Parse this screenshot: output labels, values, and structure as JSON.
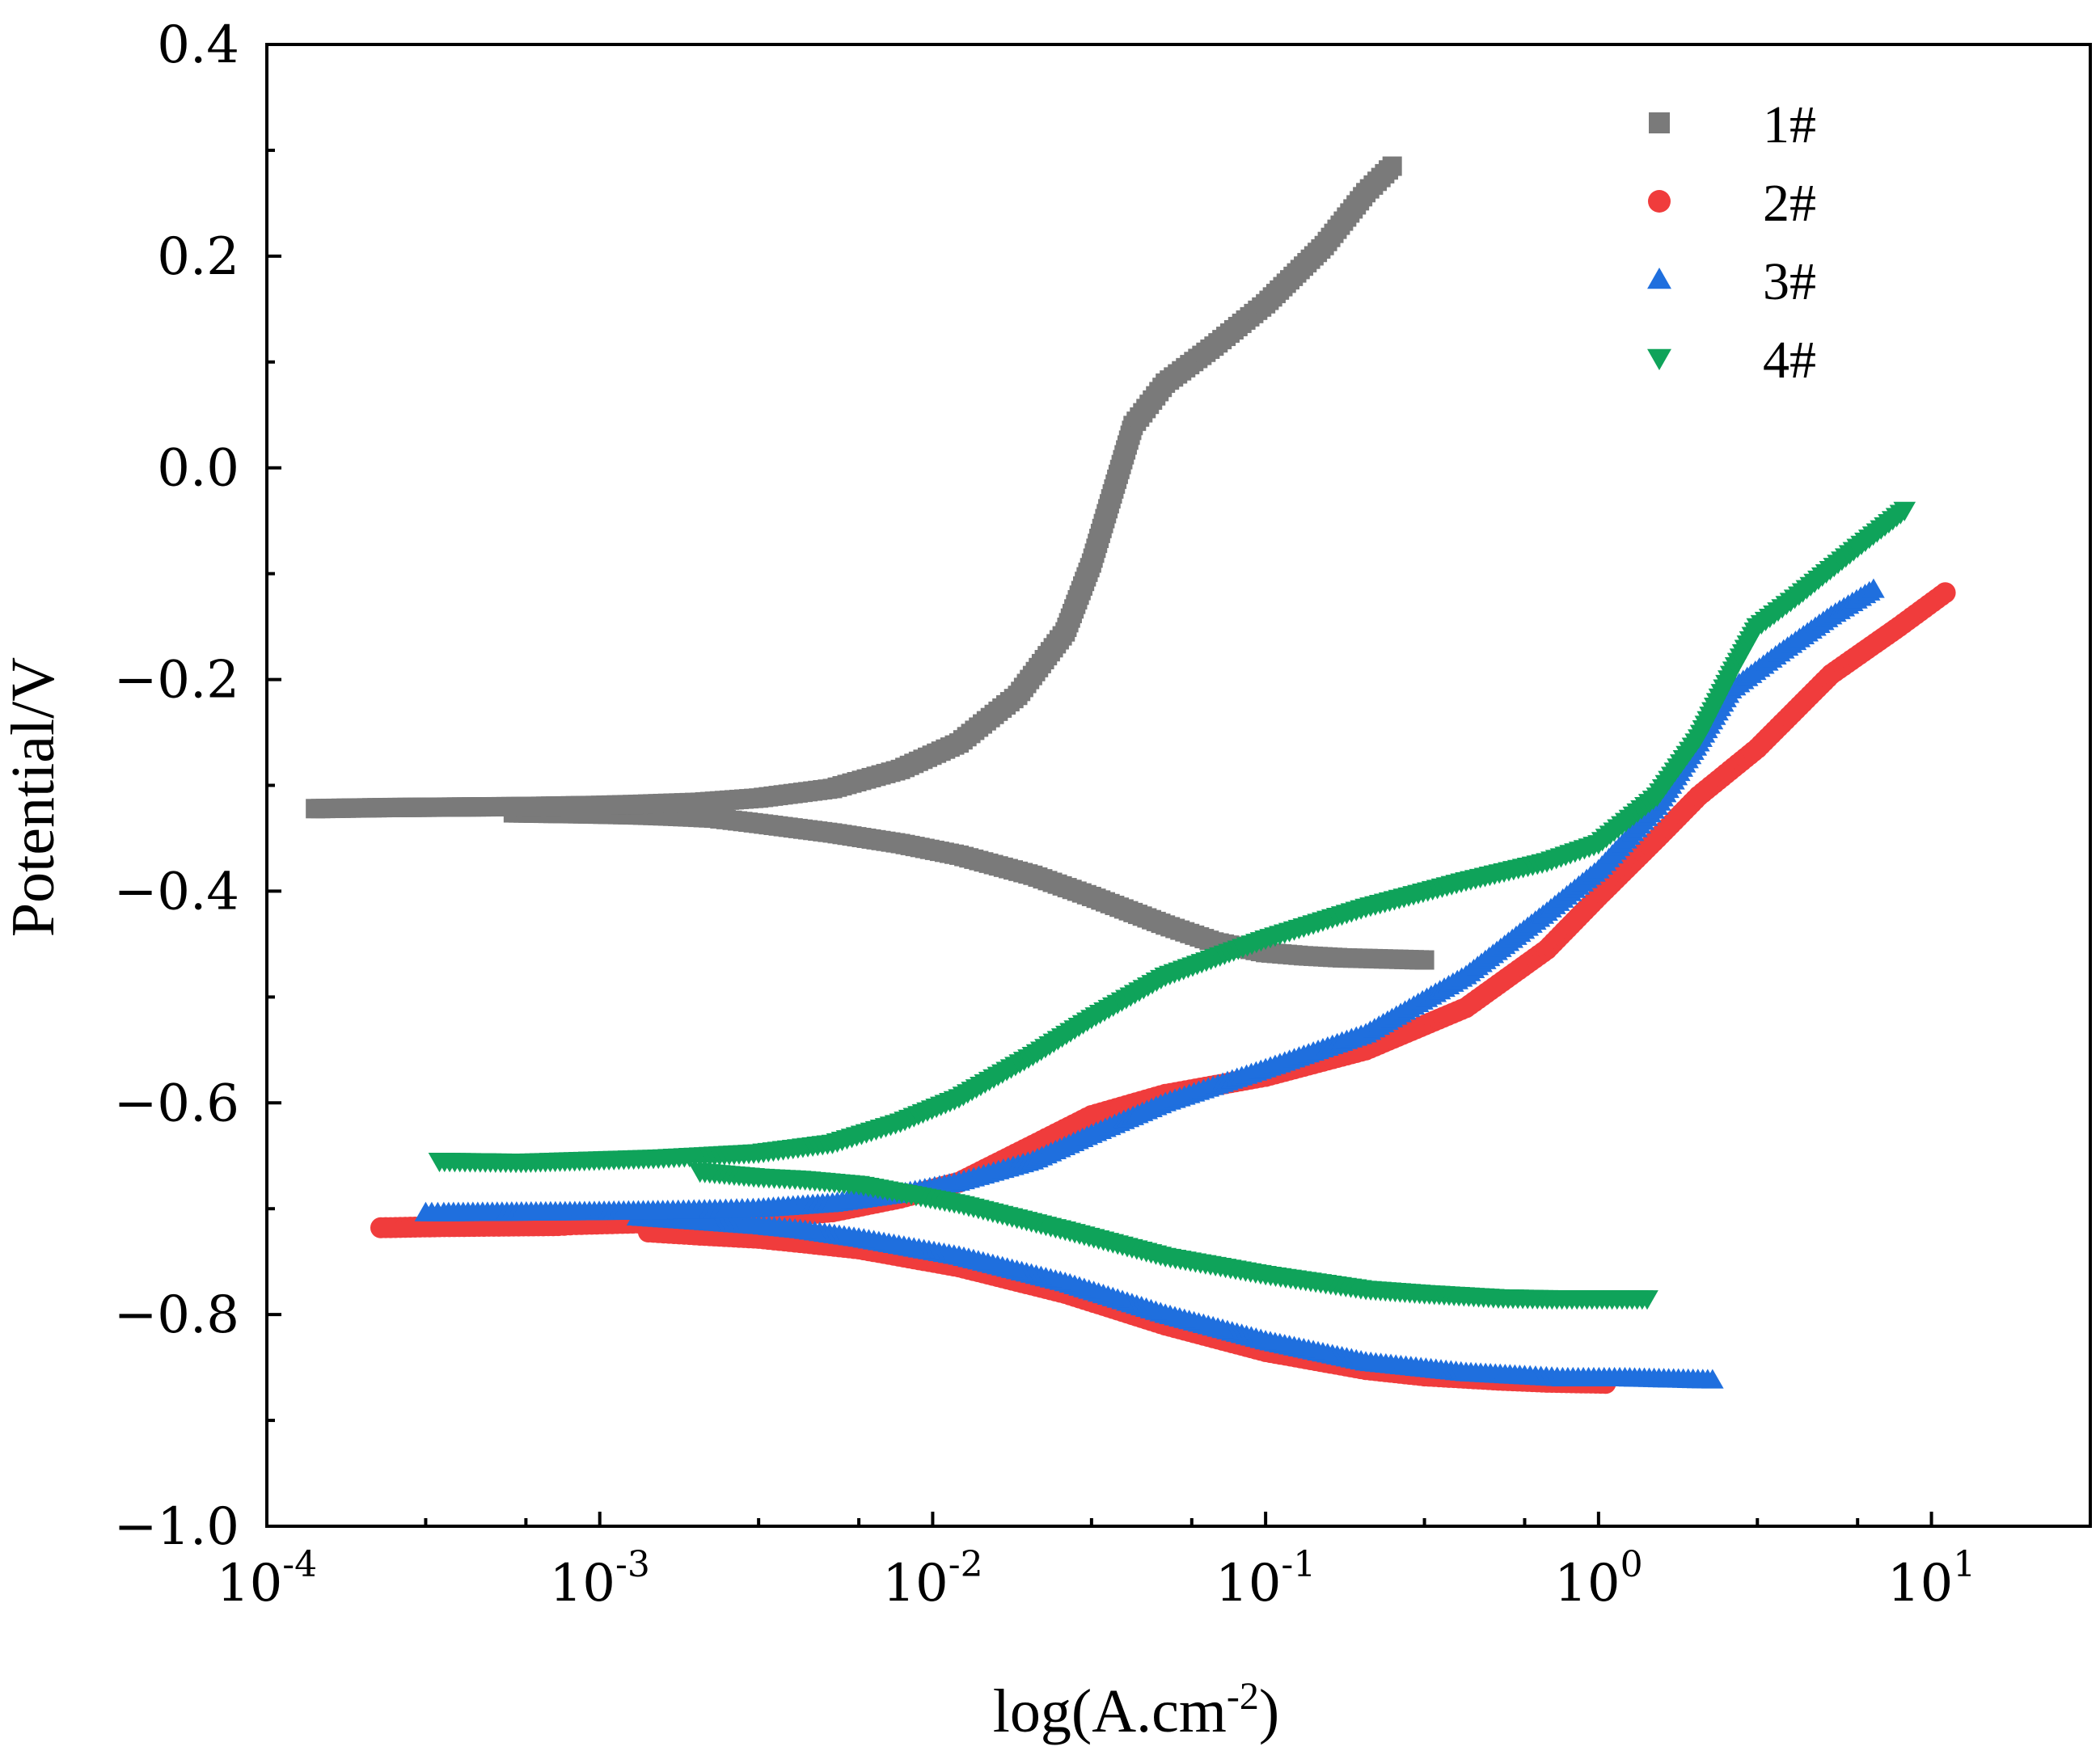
{
  "chart_data": {
    "type": "scatter",
    "title": "",
    "xlabel_base": "log(A.cm",
    "xlabel_sup": "-2",
    "xlabel_close": ")",
    "ylabel": "Potential/V",
    "xscale": "log",
    "xlim": [
      0.0001,
      30
    ],
    "ylim": [
      -1.0,
      0.4
    ],
    "grid": false,
    "legend_position": "top-right",
    "x_ticks": [
      {
        "value": 0.0001,
        "base": "10",
        "exp": "-4"
      },
      {
        "value": 0.001,
        "base": "10",
        "exp": "-3"
      },
      {
        "value": 0.01,
        "base": "10",
        "exp": "-2"
      },
      {
        "value": 0.1,
        "base": "10",
        "exp": "-1"
      },
      {
        "value": 1,
        "base": "10",
        "exp": "0"
      },
      {
        "value": 10,
        "base": "10",
        "exp": "1"
      }
    ],
    "y_ticks": [
      {
        "value": 0.4,
        "label": "0.4"
      },
      {
        "value": 0.2,
        "label": "0.2"
      },
      {
        "value": 0.0,
        "label": "0.0"
      },
      {
        "value": -0.2,
        "label": "−0.2"
      },
      {
        "value": -0.4,
        "label": "−0.4"
      },
      {
        "value": -0.6,
        "label": "−0.6"
      },
      {
        "value": -0.8,
        "label": "−0.8"
      },
      {
        "value": -1.0,
        "label": "−1.0"
      }
    ],
    "series": [
      {
        "name": "1#",
        "color": "#7a7a7a",
        "marker": "square",
        "cathodic": [
          [
            0.3,
            -0.465
          ],
          [
            0.17,
            -0.463
          ],
          [
            0.13,
            -0.461
          ],
          [
            0.1,
            -0.458
          ],
          [
            0.07,
            -0.448
          ],
          [
            0.05,
            -0.432
          ],
          [
            0.03,
            -0.405
          ],
          [
            0.02,
            -0.385
          ],
          [
            0.012,
            -0.366
          ],
          [
            0.008,
            -0.355
          ],
          [
            0.005,
            -0.345
          ],
          [
            0.003,
            -0.336
          ],
          [
            0.0025,
            -0.333
          ],
          [
            0.0022,
            -0.331
          ],
          [
            0.0019,
            -0.33
          ],
          [
            0.0016,
            -0.329
          ],
          [
            0.0013,
            -0.328
          ],
          [
            0.00092,
            -0.327
          ],
          [
            0.00055,
            -0.326
          ]
        ],
        "anodic": [
          [
            0.00014,
            -0.322
          ],
          [
            0.00023,
            -0.321
          ],
          [
            0.0006,
            -0.32
          ],
          [
            0.00097,
            -0.319
          ],
          [
            0.0013,
            -0.318
          ],
          [
            0.0016,
            -0.317
          ],
          [
            0.002,
            -0.316
          ],
          [
            0.003,
            -0.312
          ],
          [
            0.005,
            -0.303
          ],
          [
            0.008,
            -0.285
          ],
          [
            0.012,
            -0.26
          ],
          [
            0.018,
            -0.215
          ],
          [
            0.025,
            -0.155
          ],
          [
            0.03,
            -0.09
          ],
          [
            0.035,
            -0.02
          ],
          [
            0.04,
            0.04
          ],
          [
            0.05,
            0.08
          ],
          [
            0.07,
            0.115
          ],
          [
            0.1,
            0.155
          ],
          [
            0.15,
            0.21
          ],
          [
            0.2,
            0.26
          ],
          [
            0.24,
            0.285
          ]
        ]
      },
      {
        "name": "2#",
        "color": "#f03c3c",
        "marker": "circle",
        "cathodic": [
          [
            1.05,
            -0.865
          ],
          [
            0.7,
            -0.864
          ],
          [
            0.5,
            -0.862
          ],
          [
            0.3,
            -0.858
          ],
          [
            0.2,
            -0.852
          ],
          [
            0.1,
            -0.835
          ],
          [
            0.05,
            -0.81
          ],
          [
            0.025,
            -0.78
          ],
          [
            0.012,
            -0.755
          ],
          [
            0.006,
            -0.738
          ],
          [
            0.004,
            -0.732
          ],
          [
            0.003,
            -0.728
          ],
          [
            0.002,
            -0.725
          ],
          [
            0.0014,
            -0.722
          ]
        ],
        "anodic": [
          [
            0.00022,
            -0.718
          ],
          [
            0.00033,
            -0.717
          ],
          [
            0.00075,
            -0.716
          ],
          [
            0.00085,
            -0.715
          ],
          [
            0.0015,
            -0.713
          ],
          [
            0.002,
            -0.711
          ],
          [
            0.003,
            -0.709
          ],
          [
            0.005,
            -0.703
          ],
          [
            0.008,
            -0.69
          ],
          [
            0.012,
            -0.675
          ],
          [
            0.02,
            -0.64
          ],
          [
            0.03,
            -0.612
          ],
          [
            0.05,
            -0.592
          ],
          [
            0.1,
            -0.575
          ],
          [
            0.2,
            -0.55
          ],
          [
            0.4,
            -0.51
          ],
          [
            0.7,
            -0.455
          ],
          [
            1.0,
            -0.405
          ],
          [
            1.5,
            -0.35
          ],
          [
            2.0,
            -0.31
          ],
          [
            3.0,
            -0.265
          ],
          [
            5.0,
            -0.195
          ],
          [
            8.0,
            -0.15
          ],
          [
            11.0,
            -0.118
          ]
        ]
      },
      {
        "name": "3#",
        "color": "#1f6fde",
        "marker": "triangle-up",
        "cathodic": [
          [
            2.2,
            -0.862
          ],
          [
            1.2,
            -0.86
          ],
          [
            0.78,
            -0.86
          ],
          [
            0.6,
            -0.858
          ],
          [
            0.4,
            -0.855
          ],
          [
            0.2,
            -0.845
          ],
          [
            0.1,
            -0.825
          ],
          [
            0.05,
            -0.8
          ],
          [
            0.025,
            -0.77
          ],
          [
            0.012,
            -0.745
          ],
          [
            0.006,
            -0.728
          ],
          [
            0.004,
            -0.72
          ],
          [
            0.003,
            -0.716
          ],
          [
            0.002,
            -0.712
          ],
          [
            0.0013,
            -0.708
          ]
        ],
        "anodic": [
          [
            0.0003,
            -0.704
          ],
          [
            0.00034,
            -0.704
          ],
          [
            0.0009,
            -0.703
          ],
          [
            0.0016,
            -0.702
          ],
          [
            0.0023,
            -0.701
          ],
          [
            0.003,
            -0.7
          ],
          [
            0.005,
            -0.695
          ],
          [
            0.008,
            -0.686
          ],
          [
            0.012,
            -0.675
          ],
          [
            0.02,
            -0.655
          ],
          [
            0.03,
            -0.63
          ],
          [
            0.05,
            -0.6
          ],
          [
            0.1,
            -0.568
          ],
          [
            0.2,
            -0.535
          ],
          [
            0.4,
            -0.48
          ],
          [
            0.7,
            -0.42
          ],
          [
            1.0,
            -0.38
          ],
          [
            1.5,
            -0.32
          ],
          [
            2.0,
            -0.26
          ],
          [
            2.5,
            -0.21
          ],
          [
            3.5,
            -0.175
          ],
          [
            5.0,
            -0.14
          ],
          [
            6.7,
            -0.115
          ]
        ]
      },
      {
        "name": "4#",
        "color": "#0fa35a",
        "marker": "triangle-down",
        "cathodic": [
          [
            1.4,
            -0.785
          ],
          [
            0.75,
            -0.785
          ],
          [
            0.5,
            -0.784
          ],
          [
            0.3,
            -0.78
          ],
          [
            0.2,
            -0.776
          ],
          [
            0.1,
            -0.762
          ],
          [
            0.05,
            -0.745
          ],
          [
            0.025,
            -0.72
          ],
          [
            0.012,
            -0.695
          ],
          [
            0.006,
            -0.677
          ],
          [
            0.004,
            -0.672
          ],
          [
            0.003,
            -0.67
          ],
          [
            0.002,
            -0.665
          ]
        ],
        "anodic": [
          [
            0.00033,
            -0.655
          ],
          [
            0.00058,
            -0.656
          ],
          [
            0.00093,
            -0.654
          ],
          [
            0.0015,
            -0.652
          ],
          [
            0.002,
            -0.65
          ],
          [
            0.003,
            -0.647
          ],
          [
            0.005,
            -0.638
          ],
          [
            0.008,
            -0.618
          ],
          [
            0.012,
            -0.595
          ],
          [
            0.02,
            -0.555
          ],
          [
            0.03,
            -0.52
          ],
          [
            0.05,
            -0.48
          ],
          [
            0.1,
            -0.445
          ],
          [
            0.2,
            -0.415
          ],
          [
            0.4,
            -0.39
          ],
          [
            0.7,
            -0.372
          ],
          [
            1.0,
            -0.355
          ],
          [
            1.5,
            -0.31
          ],
          [
            2.0,
            -0.255
          ],
          [
            2.5,
            -0.195
          ],
          [
            3.0,
            -0.15
          ],
          [
            4.0,
            -0.12
          ],
          [
            6.0,
            -0.075
          ],
          [
            8.3,
            -0.04
          ]
        ]
      }
    ]
  }
}
